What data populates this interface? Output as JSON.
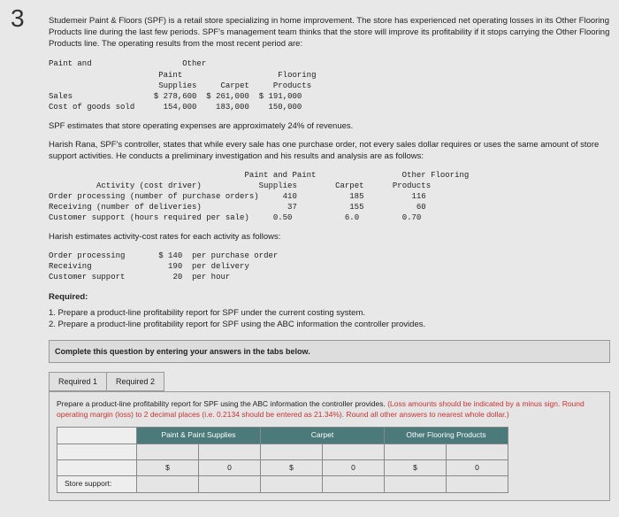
{
  "question_number": "3",
  "intro": "Studemeir Paint & Floors (SPF) is a retail store specializing in home improvement. The store has experienced net operating losses in its Other Flooring Products line during the last few periods. SPF's management team thinks that the store will improve its profitability if it stops carrying the Other Flooring Products line. The operating results from the most recent period are:",
  "t1": {
    "h1": "Paint and",
    "h2": "Paint",
    "h3": "Supplies",
    "h4": "Carpet",
    "h5": "Other",
    "h6": "Flooring",
    "h7": "Products",
    "r1_label": "Sales",
    "r1_v1": "$ 278,600",
    "r1_v2": "$ 261,000",
    "r1_v3": "$ 191,000",
    "r2_label": "Cost of goods sold",
    "r2_v1": "154,000",
    "r2_v2": "183,000",
    "r2_v3": "150,000"
  },
  "p2": "SPF estimates that store operating expenses are approximately 24% of revenues.",
  "p3": "Harish Rana, SPF's controller, states that while every sale has one purchase order, not every sales dollar requires or uses the same amount of store support activities. He conducts a preliminary investigation and his results and analysis are as follows:",
  "t2": {
    "h_activity": "Activity (cost driver)",
    "h_pps": "Paint and Paint",
    "h_supplies": "Supplies",
    "h_carpet": "Carpet",
    "h_ofp1": "Other Flooring",
    "h_ofp2": "Products",
    "r1_label": "Order processing (number of purchase orders)",
    "r1_v1": "410",
    "r1_v2": "185",
    "r1_v3": "116",
    "r2_label": "Receiving (number of deliveries)",
    "r2_v1": "37",
    "r2_v2": "155",
    "r2_v3": "60",
    "r3_label": "Customer support (hours required per sale)",
    "r3_v1": "0.50",
    "r3_v2": "6.0",
    "r3_v3": "0.70"
  },
  "p4": "Harish estimates activity-cost rates for each activity as follows:",
  "t3": {
    "r1_label": "Order processing",
    "r1_v": "$ 140",
    "r1_u": "per purchase order",
    "r2_label": "Receiving",
    "r2_v": "190",
    "r2_u": "per delivery",
    "r3_label": "Customer support",
    "r3_v": "20",
    "r3_u": "per hour"
  },
  "req_heading": "Required:",
  "req1": "1. Prepare a product-line profitability report for SPF under the current costing system.",
  "req2": "2. Prepare a product-line profitability report for SPF using the ABC information the controller provides.",
  "instruction": "Complete this question by entering your answers in the tabs below.",
  "tab1": "Required 1",
  "tab2": "Required 2",
  "tabnote_a": "Prepare a product-line profitability report for SPF using the ABC information the controller provides. ",
  "tabnote_b": "(Loss amounts should be indicated by a minus sign. Round operating margin (loss) to 2 decimal places (i.e. 0.2134 should be entered as 21.34%). Round all other answers to nearest whole dollar.)",
  "ans_headers": {
    "c1": "Paint & Paint Supplies",
    "c2": "Carpet",
    "c3": "Other Flooring Products"
  },
  "ans_row_label": "Store support:",
  "dollar": "$",
  "zero": "0"
}
